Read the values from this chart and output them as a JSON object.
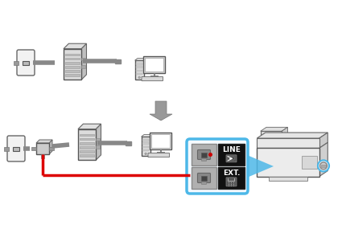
{
  "bg_color": "#ffffff",
  "gray_wire": "#888888",
  "red_wire": "#dd0000",
  "blue_color": "#4db8e8",
  "dark_gray": "#555555",
  "light_gray": "#e8e8e8",
  "mid_gray": "#cccccc",
  "arrow_fill": "#888888",
  "black": "#111111"
}
